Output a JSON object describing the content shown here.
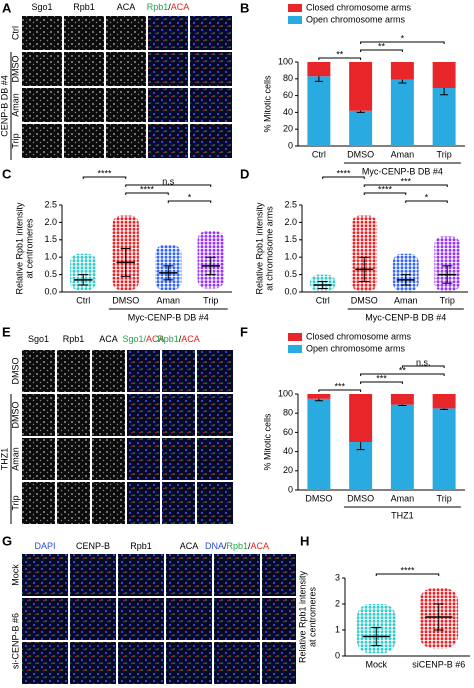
{
  "panel_A": {
    "letter": "A",
    "columns": [
      [
        {
          "text": "Sgo1",
          "color": "#000000"
        }
      ],
      [
        {
          "text": "Rpb1",
          "color": "#000000"
        }
      ],
      [
        {
          "text": "ACA",
          "color": "#000000"
        }
      ],
      [
        {
          "text": "Rpb1",
          "color": "#1fa347"
        },
        {
          "text": "/",
          "color": "#000000"
        },
        {
          "text": "ACA",
          "color": "#e0231c"
        }
      ]
    ],
    "rows": [
      "Ctrl",
      "DMSO",
      "Aman",
      "Trip"
    ],
    "group": "CENP-B DB #4"
  },
  "panel_E": {
    "letter": "E",
    "columns": [
      [
        {
          "text": "Sgo1",
          "color": "#000000"
        }
      ],
      [
        {
          "text": "Rpb1",
          "color": "#000000"
        }
      ],
      [
        {
          "text": "ACA",
          "color": "#000000"
        }
      ],
      [
        {
          "text": "Sgo1/",
          "color": "#1fa347"
        },
        {
          "text": "ACA",
          "color": "#e0231c"
        }
      ],
      [
        {
          "text": "Rpb1",
          "color": "#1fa347"
        },
        {
          "text": "/",
          "color": "#000000"
        },
        {
          "text": "ACA",
          "color": "#e0231c"
        }
      ]
    ],
    "rows": [
      "DMSO",
      "DMSO",
      "Aman",
      "Trip"
    ],
    "group": "THZ1"
  },
  "panel_G": {
    "letter": "G",
    "columns": [
      [
        {
          "text": "DAPI",
          "color": "#2c4bd6"
        }
      ],
      [
        {
          "text": "CENP-B",
          "color": "#000000"
        }
      ],
      [
        {
          "text": "Rpb1",
          "color": "#000000"
        }
      ],
      [
        {
          "text": "ACA",
          "color": "#000000"
        }
      ],
      [
        {
          "text": "DNA",
          "color": "#2c4bd6"
        },
        {
          "text": "/",
          "color": "#000000"
        },
        {
          "text": "Rpb1",
          "color": "#1fa347"
        },
        {
          "text": "/",
          "color": "#000000"
        },
        {
          "text": "ACA",
          "color": "#e0231c"
        }
      ]
    ],
    "rows": [
      "Mock",
      "si-CENP-B #6"
    ]
  },
  "chart_data": [
    {
      "type": "stacked_bar",
      "letter": "B",
      "ylabel": [
        "% Mitotic cells"
      ],
      "categories": [
        "Ctrl",
        "DMSO",
        "Aman",
        "Trip"
      ],
      "group_label": "Myc-CENP-B DB #4",
      "series": [
        {
          "name": "Open chromosome arms",
          "color": "#29abe2",
          "values": [
            83,
            42,
            79,
            69
          ],
          "errors": [
            6,
            2,
            4,
            8
          ]
        },
        {
          "name": "Closed chromosome arms",
          "color": "#e8262a",
          "values": [
            17,
            58,
            21,
            31
          ]
        }
      ],
      "ylim": [
        0,
        100
      ],
      "yticks": [
        0,
        20,
        40,
        60,
        80,
        100
      ],
      "comparisons": [
        {
          "pair": [
            0,
            1
          ],
          "label": "**"
        },
        {
          "pair": [
            1,
            2
          ],
          "label": "**"
        },
        {
          "pair": [
            1,
            3
          ],
          "label": "*"
        }
      ]
    },
    {
      "type": "dot_plot",
      "letter": "C",
      "ylabel": [
        "Relative Rpb1 intensity",
        "at centromeres"
      ],
      "categories": [
        "Ctrl",
        "DMSO",
        "Aman",
        "Trip"
      ],
      "group_label": "Myc-CENP-B DB #4",
      "colors": [
        "#33cccc",
        "#e8262a",
        "#3366ff",
        "#9933ff"
      ],
      "values": [
        0.35,
        0.85,
        0.55,
        0.75
      ],
      "errors": [
        0.15,
        0.4,
        0.2,
        0.25
      ],
      "ranges": [
        [
          0.05,
          1.1
        ],
        [
          0.05,
          2.2
        ],
        [
          0.05,
          1.35
        ],
        [
          0.1,
          1.75
        ]
      ],
      "ylim": [
        0,
        2.5
      ],
      "yticks": [
        {
          "value": 0,
          "label": "0.0"
        },
        0.5,
        {
          "value": 1,
          "label": "1.0"
        },
        1.5,
        {
          "value": 2,
          "label": "2.0"
        },
        2.5
      ],
      "comparisons": [
        {
          "pair": [
            2,
            3
          ],
          "label": "*"
        },
        {
          "pair": [
            1,
            2
          ],
          "label": "****"
        },
        {
          "pair": [
            1,
            3
          ],
          "label": "n.s"
        },
        {
          "pair": [
            0,
            1
          ],
          "label": "****"
        }
      ]
    },
    {
      "type": "dot_plot",
      "letter": "D",
      "ylabel": [
        "Relative Rpb1 intensity",
        "at chromosome arms"
      ],
      "categories": [
        "Ctrl",
        "DMSO",
        "Aman",
        "Trip"
      ],
      "group_label": "Myc-CENP-B DB #4",
      "colors": [
        "#33cccc",
        "#e8262a",
        "#3366ff",
        "#9933ff"
      ],
      "values": [
        0.2,
        0.65,
        0.35,
        0.5
      ],
      "errors": [
        0.1,
        0.35,
        0.15,
        0.25
      ],
      "ranges": [
        [
          0.02,
          0.5
        ],
        [
          0.02,
          2.2
        ],
        [
          0.02,
          1.1
        ],
        [
          0.02,
          1.6
        ]
      ],
      "ylim": [
        0,
        2.5
      ],
      "yticks": [
        {
          "value": 0,
          "label": "0.0"
        },
        0.5,
        {
          "value": 1,
          "label": "1.0"
        },
        1.5,
        {
          "value": 2,
          "label": "2.0"
        },
        2.5
      ],
      "comparisons": [
        {
          "pair": [
            2,
            3
          ],
          "label": "*"
        },
        {
          "pair": [
            1,
            2
          ],
          "label": "****"
        },
        {
          "pair": [
            1,
            3
          ],
          "label": "***"
        },
        {
          "pair": [
            0,
            1
          ],
          "label": "****"
        }
      ]
    },
    {
      "type": "stacked_bar",
      "letter": "F",
      "ylabel": [
        "% Mitotic cells"
      ],
      "categories": [
        "DMSO",
        "DMSO",
        "Aman",
        "Trip"
      ],
      "group_label": "THZ1",
      "series": [
        {
          "name": "Open chromosome arms",
          "color": "#29abe2",
          "values": [
            95,
            50,
            89,
            85
          ],
          "errors": [
            2,
            8,
            1,
            1
          ]
        },
        {
          "name": "Closed chromosome arms",
          "color": "#e8262a",
          "values": [
            5,
            50,
            11,
            15
          ]
        }
      ],
      "ylim": [
        0,
        100
      ],
      "yticks": [
        0,
        20,
        40,
        60,
        80,
        100
      ],
      "comparisons": [
        {
          "pair": [
            0,
            1
          ],
          "label": "***"
        },
        {
          "pair": [
            1,
            2
          ],
          "label": "***"
        },
        {
          "pair": [
            1,
            3
          ],
          "label": "**"
        },
        {
          "pair": [
            2,
            3
          ],
          "label": "n.s."
        }
      ]
    },
    {
      "type": "dot_plot",
      "letter": "H",
      "ylabel": [
        "Relative Rpb1 intensity",
        "at centromeres"
      ],
      "categories": [
        "Mock",
        "siCENP-B #6"
      ],
      "colors": [
        "#33cccc",
        "#e8262a"
      ],
      "values": [
        0.75,
        1.5
      ],
      "errors": [
        0.35,
        0.5
      ],
      "ranges": [
        [
          0.1,
          2.0
        ],
        [
          0.3,
          2.6
        ]
      ],
      "ylim": [
        0,
        3
      ],
      "yticks": [
        0,
        1,
        2,
        3
      ],
      "comparisons": [
        {
          "pair": [
            0,
            1
          ],
          "label": "****"
        }
      ]
    }
  ]
}
